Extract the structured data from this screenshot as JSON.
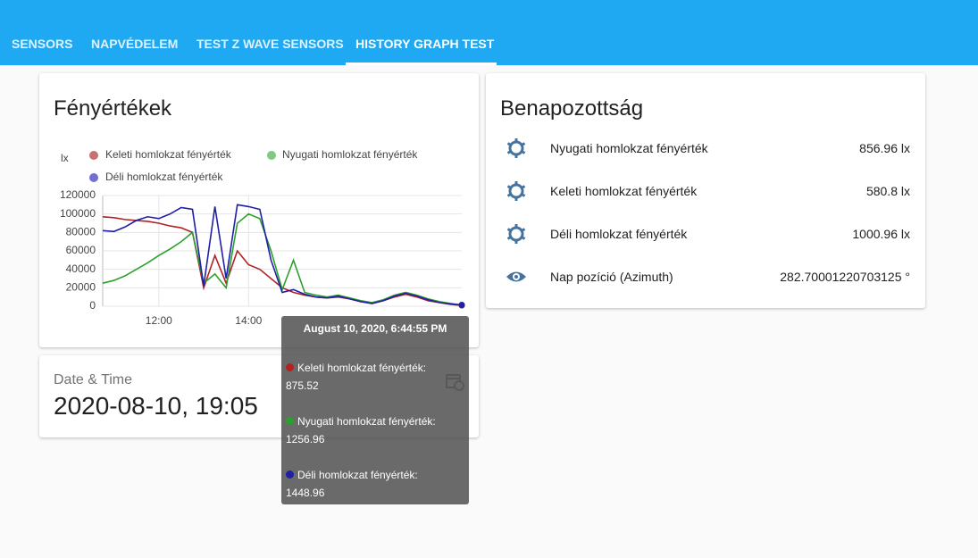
{
  "tabs": [
    "SENSORS",
    "NAPVÉDELEM",
    "TEST Z WAVE SENSORS",
    "HISTORY GRAPH TEST"
  ],
  "history_card": {
    "title": "Fényértékek"
  },
  "chart_data": {
    "type": "line",
    "y_label": "lx",
    "x": [
      10.75,
      11,
      11.25,
      11.5,
      11.75,
      12,
      12.25,
      12.5,
      12.75,
      13,
      13.25,
      13.5,
      13.75,
      14,
      14.25,
      14.5,
      14.75,
      15,
      15.25,
      15.5,
      15.75,
      16,
      16.25,
      16.5,
      16.75,
      17,
      17.25,
      17.5,
      17.75,
      18,
      18.25,
      18.5,
      18.75
    ],
    "series": [
      {
        "name": "Keleti homlokzat fényérték",
        "color": "#b22222",
        "legend_color": "#c97070",
        "values": [
          97000,
          96000,
          94000,
          93000,
          92000,
          90000,
          87000,
          85000,
          80000,
          20000,
          55000,
          25000,
          60000,
          45000,
          40000,
          30000,
          20000,
          15000,
          12000,
          10000,
          9000,
          10000,
          8000,
          5000,
          3000,
          6000,
          10000,
          13000,
          10000,
          6000,
          4000,
          2000,
          875.52
        ]
      },
      {
        "name": "Nyugati homlokzat fényérték",
        "color": "#2ca02c",
        "legend_color": "#7fca7f",
        "values": [
          25000,
          28000,
          33000,
          40000,
          47000,
          55000,
          62000,
          70000,
          80000,
          25000,
          35000,
          20000,
          90000,
          100000,
          95000,
          60000,
          18000,
          50000,
          15000,
          12000,
          10000,
          12000,
          9000,
          6000,
          4000,
          7000,
          12000,
          15000,
          12000,
          8000,
          5000,
          3000,
          1256.96
        ]
      },
      {
        "name": "Déli homlokzat fényérték",
        "color": "#1f1fa8",
        "legend_color": "#7070d0",
        "values": [
          82000,
          81000,
          86000,
          93000,
          97000,
          95000,
          100000,
          107000,
          105000,
          22000,
          108000,
          30000,
          110000,
          108000,
          105000,
          50000,
          15000,
          18000,
          13000,
          10000,
          9000,
          11000,
          8000,
          5000,
          3000,
          6000,
          11000,
          14000,
          11000,
          7000,
          4000,
          2500,
          1448.96
        ]
      }
    ],
    "xlim": [
      10.75,
      18.75
    ],
    "xticks": [
      {
        "value": 12,
        "label": "12:00"
      },
      {
        "value": 14,
        "label": "14:00"
      }
    ],
    "ylim": [
      0,
      120000
    ],
    "yticks": [
      0,
      20000,
      40000,
      60000,
      80000,
      100000,
      120000
    ],
    "grid": true,
    "tooltip": {
      "title": "August 10, 2020, 6:44:55 PM",
      "labels": [
        "Keleti homlokzat fényérték:",
        "Nyugati homlokzat fényérték:",
        "Déli homlokzat fényérték:"
      ]
    }
  },
  "datetime_card": {
    "title": "Date & Time",
    "value": "2020-08-10, 19:05"
  },
  "entities_card": {
    "title": "Benapozottság",
    "rows": [
      {
        "name": "Nyugati homlokzat fényérték",
        "state": "856.96 lx"
      },
      {
        "name": "Keleti homlokzat fényérték",
        "state": "580.8 lx"
      },
      {
        "name": "Déli homlokzat fényérték",
        "state": "1000.96 lx"
      },
      {
        "name": "Nap pozíció (Azimuth)",
        "state": "282.70001220703125 °"
      }
    ]
  }
}
